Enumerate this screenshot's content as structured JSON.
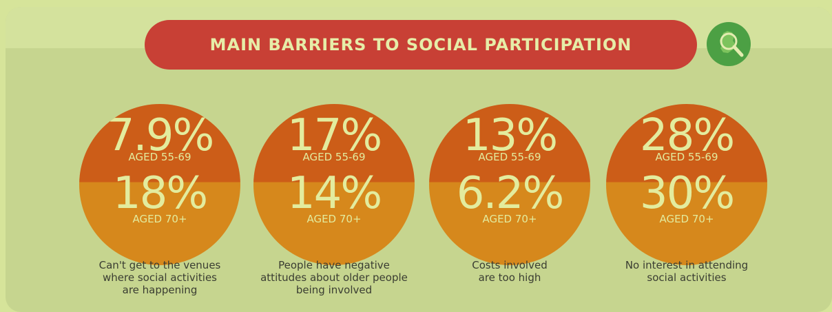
{
  "title": "MAIN BARRIERS TO SOCIAL PARTICIPATION",
  "badge_icon": "ireland-magnifier-icon",
  "colors": {
    "background": "#d6e49a",
    "panel": "#c6d58f",
    "title_pill": "#c84035",
    "circle_top": "#cc5d18",
    "circle_bottom": "#d6881c",
    "badge": "#4ca044",
    "text_light": "#e3ec9e",
    "caption": "#3a3d32"
  },
  "stats": [
    {
      "top_value": "7.9%",
      "top_label": "AGED 55-69",
      "bottom_value": "18%",
      "bottom_label": "AGED 70+",
      "caption": [
        "Can't get to the venues",
        "where social activities",
        "are happening"
      ]
    },
    {
      "top_value": "17%",
      "top_label": "AGED 55-69",
      "bottom_value": "14%",
      "bottom_label": "AGED 70+",
      "caption": [
        "People have negative",
        "attitudes about older people",
        "being involved"
      ]
    },
    {
      "top_value": "13%",
      "top_label": "AGED 55-69",
      "bottom_value": "6.2%",
      "bottom_label": "AGED 70+",
      "caption": [
        "Costs involved",
        "are too high"
      ]
    },
    {
      "top_value": "28%",
      "top_label": "AGED 55-69",
      "bottom_value": "30%",
      "bottom_label": "AGED 70+",
      "caption": [
        "No interest in attending",
        "social activities"
      ]
    }
  ]
}
